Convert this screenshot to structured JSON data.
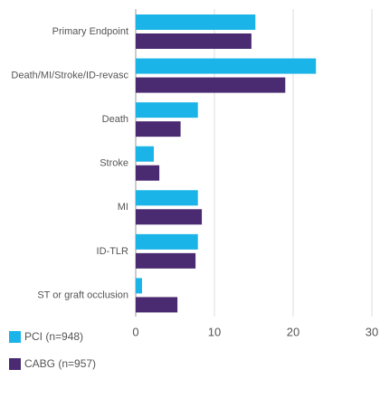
{
  "chart_data": {
    "type": "hbar",
    "categories": [
      "Primary Endpoint",
      "Death/MI/Stroke/ID-revasc",
      "Death",
      "Stroke",
      "MI",
      "ID-TLR",
      "ST or graft occlusion"
    ],
    "series": [
      {
        "name": "PCI (n=948)",
        "color": "#1ab4e8",
        "values": [
          15.2,
          22.9,
          7.9,
          2.3,
          7.9,
          7.9,
          0.8
        ]
      },
      {
        "name": "CABG (n=957)",
        "color": "#4a2a70",
        "values": [
          14.7,
          19.0,
          5.7,
          3.0,
          8.4,
          7.6,
          5.3
        ]
      }
    ],
    "xlim": [
      0,
      30
    ],
    "xticks": [
      0,
      10,
      20,
      30
    ],
    "grid": true,
    "legend": "bottom"
  }
}
